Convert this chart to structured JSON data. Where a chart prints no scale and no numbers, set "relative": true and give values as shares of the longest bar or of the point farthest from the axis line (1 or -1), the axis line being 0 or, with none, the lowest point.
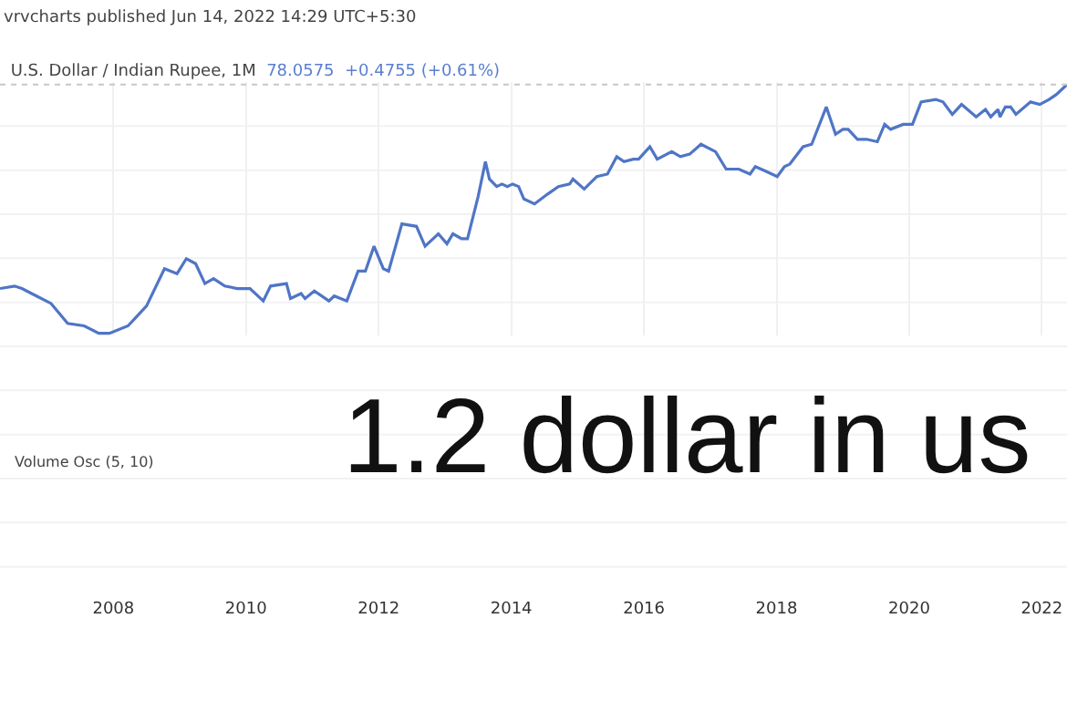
{
  "chart_data": {
    "type": "line",
    "title": "U.S. Dollar / Indian Rupee, 1M",
    "subtitle": "78.0575  +0.4755 (+0.61%)",
    "relative": true,
    "grid": true,
    "marker": "none",
    "line_style": "solid",
    "annotations": [
      "vrvcharts published Jun 14, 2022 14:29 UTC+5:30",
      "Volume Osc (5, 10)",
      "1.2 dollar in us"
    ],
    "xlim": [
      2006.29,
      2022.38
    ],
    "xticks": [
      2008,
      2010,
      2012,
      2014,
      2016,
      2018,
      2020,
      2022
    ],
    "ref_lines": [
      {
        "axis": "y",
        "value": 1.0,
        "label": null,
        "color": "#c8c8c8",
        "line_style": "dotted"
      }
    ],
    "series": [
      {
        "color": "#4f75c6",
        "x": [
          2006.29,
          2006.51,
          2006.62,
          2006.84,
          2007.06,
          2007.31,
          2007.56,
          2007.78,
          2007.94,
          2008.22,
          2008.36,
          2008.5,
          2008.77,
          2008.96,
          2009.1,
          2009.24,
          2009.38,
          2009.51,
          2009.68,
          2009.87,
          2010.06,
          2010.26,
          2010.37,
          2010.61,
          2010.67,
          2010.83,
          2010.89,
          2011.03,
          2011.25,
          2011.33,
          2011.52,
          2011.69,
          2011.8,
          2011.93,
          2012.07,
          2012.15,
          2012.35,
          2012.57,
          2012.7,
          2012.9,
          2013.03,
          2013.12,
          2013.25,
          2013.34,
          2013.5,
          2013.61,
          2013.67,
          2013.78,
          2013.86,
          2013.94,
          2014.02,
          2014.11,
          2014.19,
          2014.35,
          2014.55,
          2014.71,
          2014.88,
          2014.93,
          2015.1,
          2015.29,
          2015.45,
          2015.59,
          2015.7,
          2015.84,
          2015.92,
          2016.09,
          2016.2,
          2016.42,
          2016.55,
          2016.69,
          2016.86,
          2017.08,
          2017.24,
          2017.43,
          2017.6,
          2017.68,
          2017.85,
          2018.01,
          2018.12,
          2018.2,
          2018.4,
          2018.53,
          2018.75,
          2018.89,
          2019.0,
          2019.08,
          2019.22,
          2019.36,
          2019.52,
          2019.63,
          2019.72,
          2019.91,
          2020.05,
          2020.18,
          2020.4,
          2020.51,
          2020.65,
          2020.79,
          2021.01,
          2021.15,
          2021.23,
          2021.34,
          2021.37,
          2021.45,
          2021.53,
          2021.61,
          2021.83,
          2021.97,
          2022.11,
          2022.22,
          2022.38
        ],
        "values": [
          0.18,
          0.19,
          0.18,
          0.15,
          0.12,
          0.04,
          0.03,
          0.0,
          0.0,
          0.03,
          0.07,
          0.11,
          0.26,
          0.24,
          0.3,
          0.28,
          0.2,
          0.22,
          0.19,
          0.18,
          0.18,
          0.13,
          0.19,
          0.2,
          0.14,
          0.16,
          0.14,
          0.17,
          0.13,
          0.15,
          0.13,
          0.25,
          0.25,
          0.35,
          0.26,
          0.25,
          0.44,
          0.43,
          0.35,
          0.4,
          0.36,
          0.4,
          0.38,
          0.38,
          0.55,
          0.69,
          0.62,
          0.59,
          0.6,
          0.59,
          0.6,
          0.59,
          0.54,
          0.52,
          0.56,
          0.59,
          0.6,
          0.62,
          0.58,
          0.63,
          0.64,
          0.71,
          0.69,
          0.7,
          0.7,
          0.75,
          0.7,
          0.73,
          0.71,
          0.72,
          0.76,
          0.73,
          0.66,
          0.66,
          0.64,
          0.67,
          0.65,
          0.63,
          0.67,
          0.68,
          0.75,
          0.76,
          0.91,
          0.8,
          0.82,
          0.82,
          0.78,
          0.78,
          0.77,
          0.84,
          0.82,
          0.84,
          0.84,
          0.93,
          0.94,
          0.93,
          0.88,
          0.92,
          0.87,
          0.9,
          0.87,
          0.9,
          0.87,
          0.91,
          0.91,
          0.88,
          0.93,
          0.92,
          0.94,
          0.96,
          1.0
        ]
      }
    ]
  }
}
